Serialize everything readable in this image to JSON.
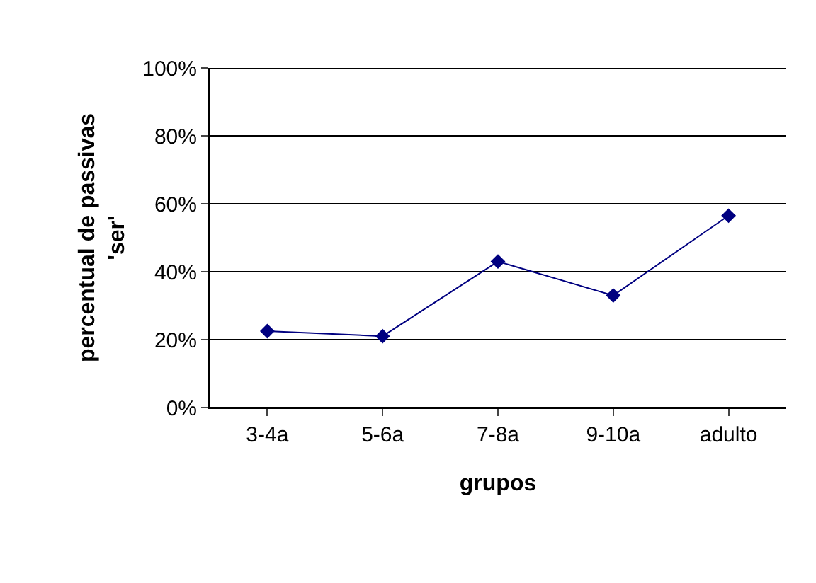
{
  "chart_data": {
    "type": "line",
    "xlabel": "grupos",
    "ylabel": "percentual de passivas\n'ser'",
    "categories": [
      "3-4a",
      "5-6a",
      "7-8a",
      "9-10a",
      "adulto"
    ],
    "series": [
      {
        "color": "#000080",
        "values": [
          22.5,
          21,
          43,
          33,
          56.5
        ]
      }
    ],
    "ylim": [
      0,
      100
    ],
    "yticks": [
      {
        "value": 0,
        "label": "0%"
      },
      {
        "value": 20,
        "label": "20%"
      },
      {
        "value": 40,
        "label": "40%"
      },
      {
        "value": 60,
        "label": "60%"
      },
      {
        "value": 80,
        "label": "80%"
      },
      {
        "value": 100,
        "label": "100%"
      }
    ],
    "grid": "y",
    "marker": "diamond",
    "line_style": "solid"
  }
}
